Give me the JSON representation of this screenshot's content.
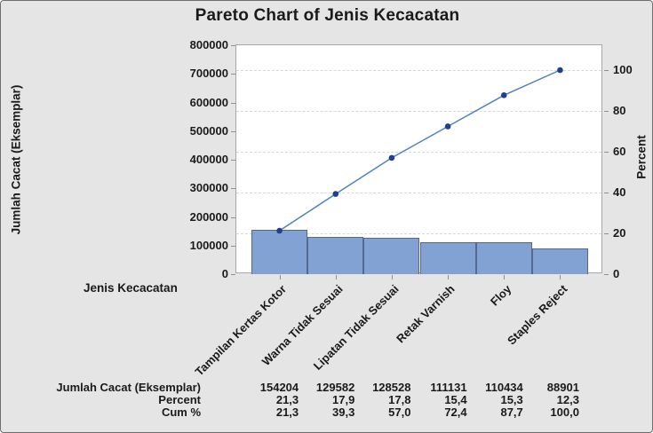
{
  "title": "Pareto Chart of Jenis Kecacatan",
  "axes": {
    "left_label": "Jumlah Cacat (Eksemplar)",
    "right_label": "Percent",
    "x_label": "Jenis Kecacatan",
    "left_ticks": [
      "0",
      "100000",
      "200000",
      "300000",
      "400000",
      "500000",
      "600000",
      "700000",
      "800000"
    ],
    "right_ticks": [
      "0",
      "20",
      "40",
      "60",
      "80",
      "100"
    ]
  },
  "chart_data": {
    "type": "bar",
    "subtype": "pareto (bars + cumulative line)",
    "title": "Pareto Chart of Jenis Kecacatan",
    "xlabel": "Jenis Kecacatan",
    "ylabel_left": "Jumlah Cacat (Eksemplar)",
    "ylabel_right": "Percent",
    "categories": [
      "Tampilan Kertas Kotor",
      "Warna Tidak Sesuai",
      "Lipatan Tidak Sesuai",
      "Retak Varnish",
      "Floy",
      "Staples Reject"
    ],
    "series": [
      {
        "name": "Jumlah Cacat (Eksemplar)",
        "type": "bar",
        "axis": "left",
        "values": [
          154204,
          129582,
          128528,
          111131,
          110434,
          88901
        ]
      },
      {
        "name": "Percent",
        "type": "table-only",
        "axis": "right",
        "values": [
          21.3,
          17.9,
          17.8,
          15.4,
          15.3,
          12.3
        ]
      },
      {
        "name": "Cum %",
        "type": "line",
        "axis": "right",
        "values": [
          21.3,
          39.3,
          57.0,
          72.4,
          87.7,
          100.0
        ]
      }
    ],
    "left_ylim": [
      0,
      800000
    ],
    "right_ylim": [
      0,
      112
    ],
    "grid": "horizontal dashed at right-axis (percent) ticks 20/40/60/80/100",
    "legend": "none"
  },
  "table": {
    "rows": [
      {
        "label": "Jumlah Cacat (Eksemplar)",
        "values": [
          "154204",
          "129582",
          "128528",
          "111131",
          "110434",
          "88901"
        ]
      },
      {
        "label": "Percent",
        "values": [
          "21,3",
          "17,9",
          "17,8",
          "15,4",
          "15,3",
          "12,3"
        ]
      },
      {
        "label": "Cum %",
        "values": [
          "21,3",
          "39,3",
          "57,0",
          "72,4",
          "87,7",
          "100,0"
        ]
      }
    ]
  },
  "colors": {
    "background": "#e5e5e5",
    "plot_background": "#ffffff",
    "bar_fill": "#83a2d4",
    "bar_border": "#56688f",
    "line": "#4f81c2",
    "marker": "#1f3f94",
    "grid": "#d8d8d8",
    "axis": "#a8a8a8",
    "tick": "#8f8f8f",
    "text": "#1a1a1a"
  }
}
